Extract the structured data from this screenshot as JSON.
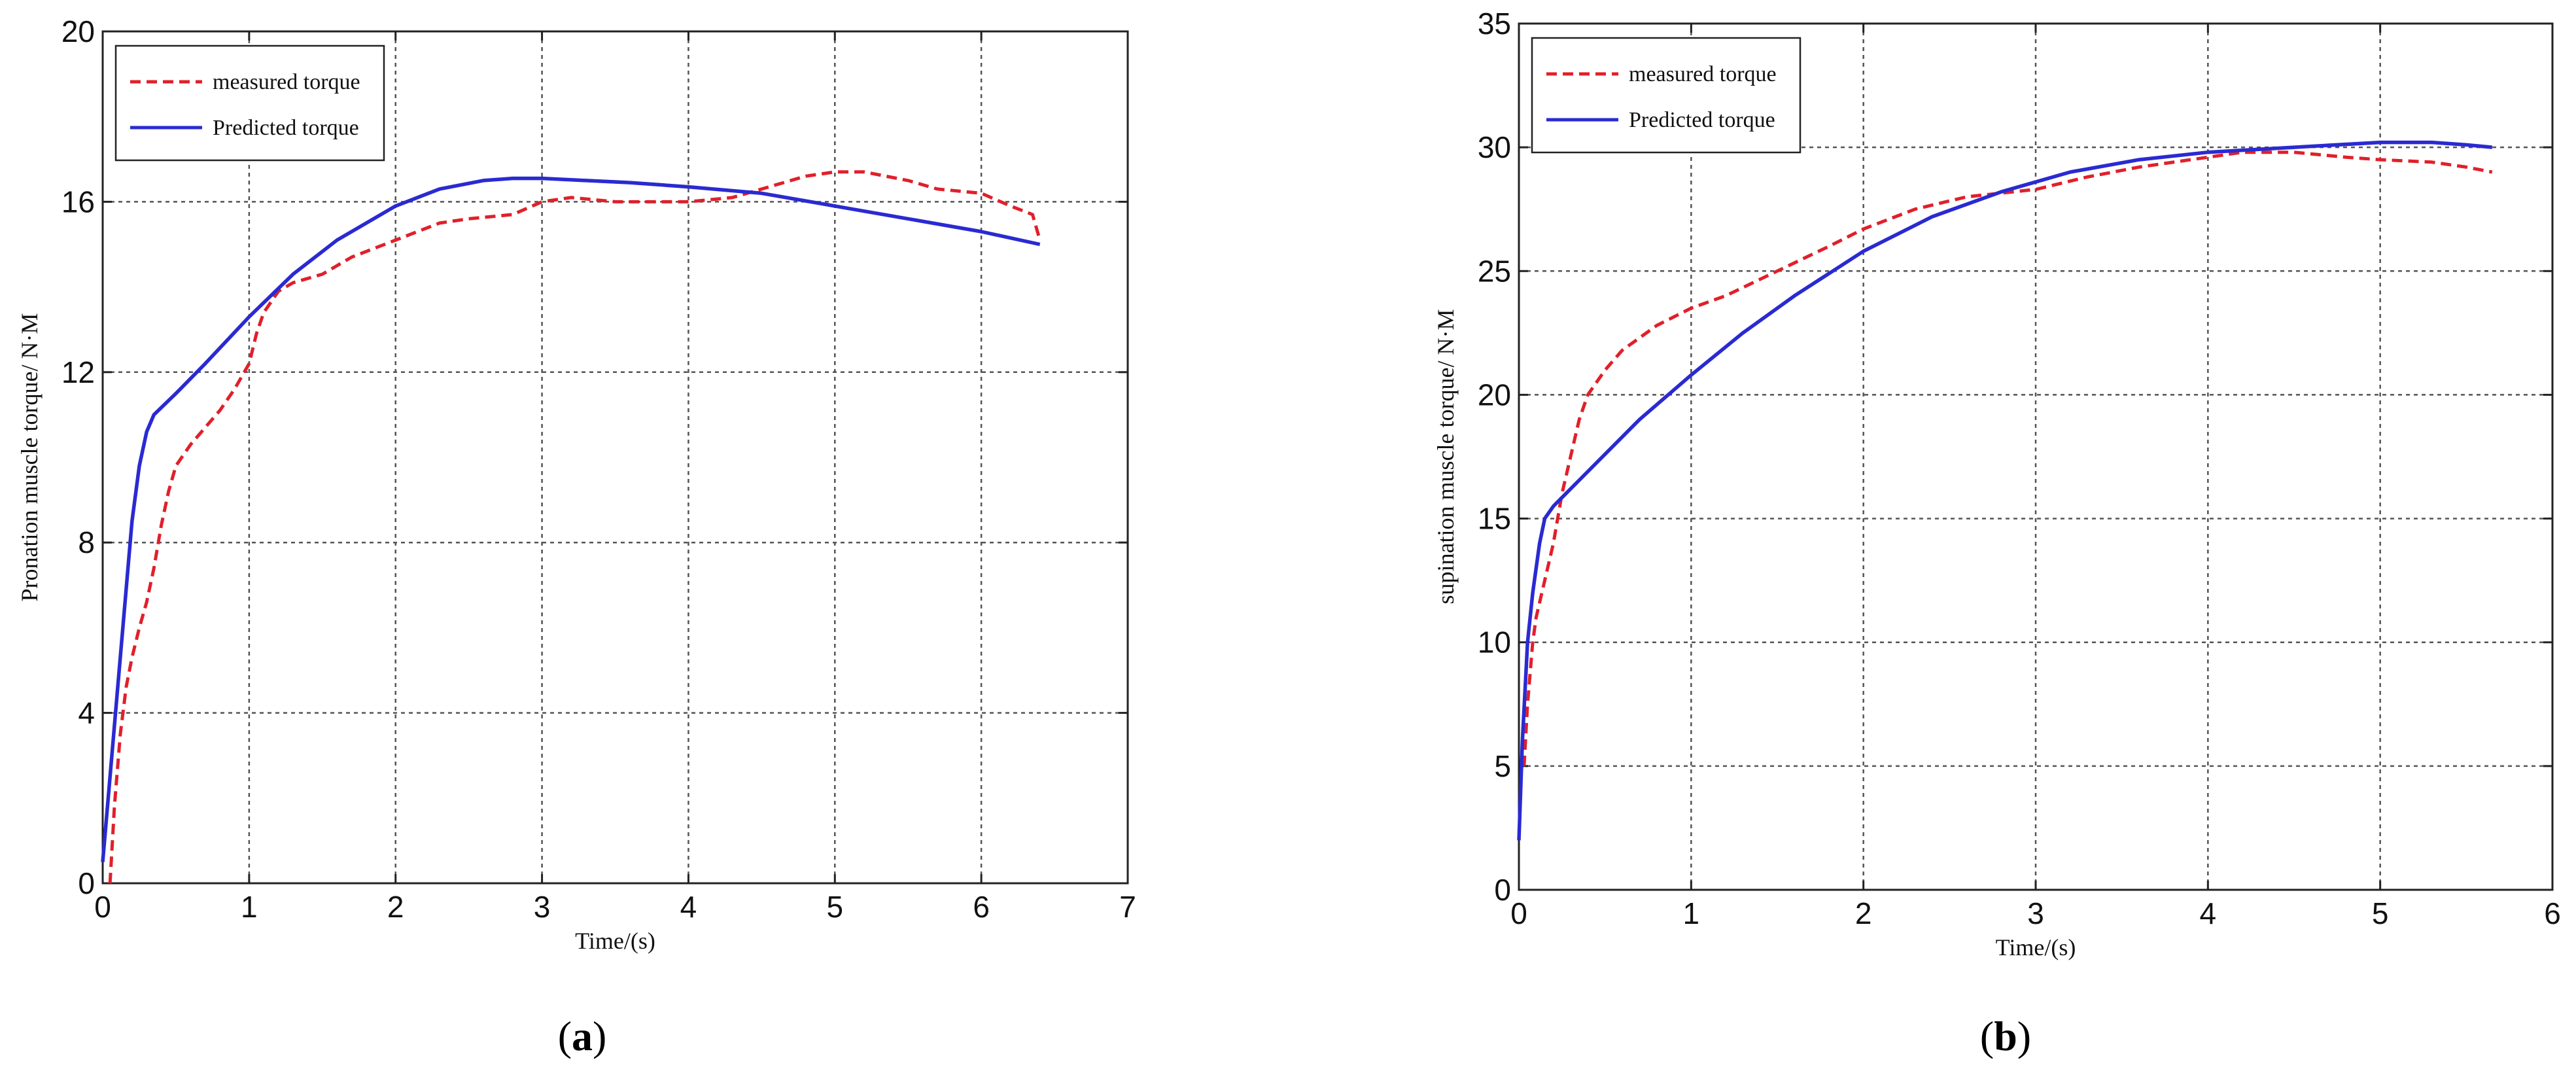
{
  "chart_data": [
    {
      "type": "line",
      "panel_label": "a",
      "xlabel": "Time/(s)",
      "ylabel": "Pronation muscle torque/ N·M",
      "xlim": [
        0,
        7
      ],
      "ylim": [
        0,
        20
      ],
      "xticks": [
        0,
        1,
        2,
        3,
        4,
        5,
        6,
        7
      ],
      "yticks": [
        0,
        4,
        8,
        12,
        16,
        20
      ],
      "grid": true,
      "legend_position": "top-left",
      "series": [
        {
          "name": "measured torque",
          "color": "#e0202a",
          "style": "dashed",
          "x": [
            0.05,
            0.08,
            0.12,
            0.16,
            0.2,
            0.25,
            0.3,
            0.35,
            0.4,
            0.45,
            0.5,
            0.6,
            0.7,
            0.8,
            0.9,
            1.0,
            1.05,
            1.1,
            1.2,
            1.3,
            1.5,
            1.7,
            2.0,
            2.3,
            2.5,
            2.8,
            3.0,
            3.2,
            3.5,
            4.0,
            4.3,
            4.6,
            4.8,
            5.0,
            5.2,
            5.5,
            5.7,
            6.0,
            6.2,
            6.35,
            6.4
          ],
          "y": [
            0.0,
            1.8,
            3.5,
            4.6,
            5.3,
            6.0,
            6.6,
            7.4,
            8.4,
            9.2,
            9.8,
            10.3,
            10.7,
            11.1,
            11.6,
            12.2,
            12.9,
            13.4,
            13.9,
            14.1,
            14.3,
            14.7,
            15.1,
            15.5,
            15.6,
            15.7,
            16.0,
            16.1,
            16.0,
            16.0,
            16.1,
            16.4,
            16.6,
            16.7,
            16.7,
            16.5,
            16.3,
            16.2,
            15.9,
            15.7,
            15.1
          ]
        },
        {
          "name": "Predicted torque",
          "color": "#2a2ad2",
          "style": "solid",
          "x": [
            0.0,
            0.05,
            0.1,
            0.15,
            0.2,
            0.25,
            0.3,
            0.35,
            0.5,
            0.7,
            1.0,
            1.3,
            1.6,
            2.0,
            2.3,
            2.6,
            2.8,
            3.0,
            3.3,
            3.6,
            4.0,
            4.5,
            5.0,
            5.5,
            6.0,
            6.4
          ],
          "y": [
            0.5,
            2.5,
            4.5,
            6.5,
            8.5,
            9.8,
            10.6,
            11.0,
            11.5,
            12.2,
            13.3,
            14.3,
            15.1,
            15.9,
            16.3,
            16.5,
            16.55,
            16.55,
            16.5,
            16.45,
            16.35,
            16.2,
            15.9,
            15.6,
            15.3,
            15.0
          ]
        }
      ]
    },
    {
      "type": "line",
      "panel_label": "b",
      "xlabel": "Time/(s)",
      "ylabel": "supination muscle torque/ N·M",
      "xlim": [
        0,
        6
      ],
      "ylim": [
        0,
        35
      ],
      "xticks": [
        0,
        1,
        2,
        3,
        4,
        5,
        6
      ],
      "yticks": [
        0,
        5,
        10,
        15,
        20,
        25,
        30,
        35
      ],
      "grid": true,
      "legend_position": "top-left",
      "series": [
        {
          "name": "measured torque",
          "color": "#e0202a",
          "style": "dashed",
          "x": [
            0.03,
            0.05,
            0.08,
            0.1,
            0.15,
            0.2,
            0.25,
            0.3,
            0.35,
            0.4,
            0.5,
            0.6,
            0.8,
            1.0,
            1.2,
            1.5,
            1.8,
            2.0,
            2.3,
            2.6,
            3.0,
            3.3,
            3.6,
            4.0,
            4.2,
            4.5,
            4.8,
            5.0,
            5.3,
            5.5,
            5.65
          ],
          "y": [
            5.0,
            7.5,
            10.0,
            11.0,
            12.5,
            14.0,
            16.0,
            17.5,
            19.0,
            20.0,
            21.0,
            21.8,
            22.8,
            23.5,
            24.0,
            25.0,
            26.0,
            26.7,
            27.5,
            28.0,
            28.3,
            28.8,
            29.2,
            29.6,
            29.8,
            29.8,
            29.6,
            29.5,
            29.4,
            29.2,
            29.0
          ]
        },
        {
          "name": "Predicted torque",
          "color": "#2a2ad2",
          "style": "solid",
          "x": [
            0.0,
            0.02,
            0.05,
            0.08,
            0.12,
            0.15,
            0.2,
            0.3,
            0.5,
            0.7,
            1.0,
            1.3,
            1.6,
            2.0,
            2.4,
            2.8,
            3.2,
            3.6,
            4.0,
            4.5,
            5.0,
            5.3,
            5.5,
            5.65
          ],
          "y": [
            2.0,
            6.0,
            10.0,
            12.0,
            14.0,
            15.0,
            15.5,
            16.2,
            17.6,
            19.0,
            20.8,
            22.5,
            24.0,
            25.8,
            27.2,
            28.2,
            29.0,
            29.5,
            29.8,
            30.0,
            30.2,
            30.2,
            30.1,
            30.0
          ]
        }
      ]
    }
  ]
}
